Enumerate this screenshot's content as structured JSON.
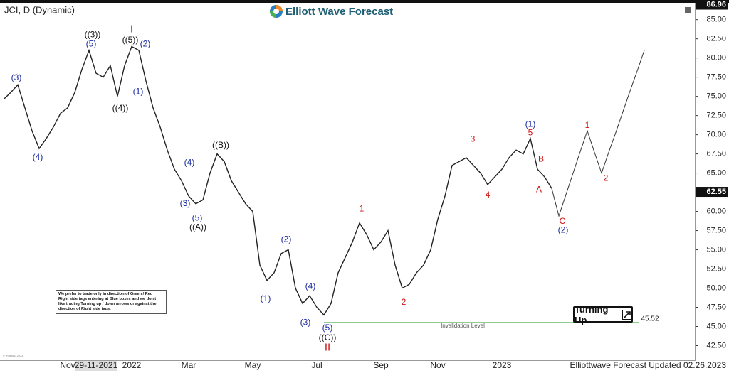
{
  "header": {
    "symbol": "JCI, D (Dynamic)",
    "logo": "Elliott Wave Forecast",
    "footer": "Elliottwave Forecast Updated 02.26.2023",
    "copyright": "© eSignal, 2023",
    "note": "We prefer to trade only in direction of Green / Red Right side tags entering at Blue boxes and we don't like trading Turning up / down arrows or against the direction of Right side tags.",
    "badge": "Turning Up"
  },
  "chart_data": {
    "type": "line",
    "categories": [
      null,
      null,
      null,
      null,
      null,
      null,
      null,
      null,
      null,
      "Nov",
      null,
      null,
      null,
      "29-11-2021",
      null,
      null,
      null,
      null,
      "2022",
      null,
      null,
      null,
      null,
      null,
      null,
      null,
      "Mar",
      null,
      null,
      null,
      null,
      null,
      null,
      null,
      null,
      "May",
      null,
      null,
      null,
      null,
      null,
      null,
      null,
      null,
      "Jul",
      null,
      null,
      null,
      null,
      null,
      null,
      null,
      null,
      "Sep",
      null,
      null,
      null,
      null,
      null,
      null,
      null,
      "Nov",
      null,
      null,
      null,
      null,
      null,
      null,
      null,
      null,
      "2023",
      null,
      null,
      null,
      null,
      null,
      null,
      null,
      null,
      null,
      null,
      null,
      null,
      null,
      null,
      null,
      null,
      null,
      null,
      null,
      null
    ],
    "series": [
      {
        "color": "#222222",
        "values": [
          74.6,
          75.5,
          76.5,
          73.5,
          70.5,
          68.2,
          69.5,
          71,
          72.8,
          73.5,
          75.5,
          78.5,
          81,
          78,
          77.5,
          79,
          75,
          79,
          81.5,
          81,
          77,
          73.5,
          71,
          68,
          65.5,
          64,
          62,
          61,
          61.5,
          65,
          67.5,
          66.5,
          64,
          62.5,
          61,
          60,
          53,
          51,
          52,
          54.5,
          55,
          50,
          48,
          49,
          47.5,
          46.5,
          48,
          52,
          54,
          56,
          58.5,
          57,
          55,
          56,
          57.5,
          53,
          50,
          50.5,
          52,
          53,
          55,
          59,
          62,
          66,
          66.5,
          67,
          66,
          65,
          63.5,
          64.5,
          65.5,
          67,
          68,
          67.5,
          69.5,
          65.5,
          64.5,
          63,
          null,
          null,
          null,
          null,
          null,
          null,
          null,
          null,
          null,
          null,
          null,
          null,
          null
        ]
      },
      {
        "color": "#333333",
        "values": [
          null,
          null,
          null,
          null,
          null,
          null,
          null,
          null,
          null,
          null,
          null,
          null,
          null,
          null,
          null,
          null,
          null,
          null,
          null,
          null,
          null,
          null,
          null,
          null,
          null,
          null,
          null,
          null,
          null,
          null,
          null,
          null,
          null,
          null,
          null,
          null,
          null,
          null,
          null,
          null,
          null,
          null,
          null,
          null,
          null,
          null,
          null,
          null,
          null,
          null,
          null,
          null,
          null,
          null,
          null,
          null,
          null,
          null,
          null,
          null,
          null,
          null,
          null,
          null,
          null,
          null,
          null,
          null,
          null,
          null,
          null,
          null,
          null,
          null,
          null,
          null,
          null,
          63,
          59.4,
          62.2,
          65,
          67.8,
          70.5,
          67.7,
          65,
          67.7,
          70.3,
          73,
          75.7,
          78.3,
          81
        ]
      }
    ],
    "ylim": [
      40.6,
      87.1
    ],
    "yticks": [
      {
        "value": 42.5,
        "label": "42.50"
      },
      {
        "value": 45,
        "label": "45.00"
      },
      {
        "value": 47.5,
        "label": "47.50"
      },
      {
        "value": 50,
        "label": "50.00"
      },
      {
        "value": 52.5,
        "label": "52.50"
      },
      {
        "value": 55,
        "label": "55.00"
      },
      {
        "value": 57.5,
        "label": "57.50"
      },
      {
        "value": 60,
        "label": "60.00"
      },
      {
        "value": 62.5,
        "label": "62.50"
      },
      {
        "value": 65,
        "label": "65.00"
      },
      {
        "value": 67.5,
        "label": "67.50"
      },
      {
        "value": 70,
        "label": "70.00"
      },
      {
        "value": 72.5,
        "label": "72.50"
      },
      {
        "value": 75,
        "label": "75.00"
      },
      {
        "value": 77.5,
        "label": "77.50"
      },
      {
        "value": 80,
        "label": "80.00"
      },
      {
        "value": 82.5,
        "label": "82.50"
      },
      {
        "value": 85,
        "label": "85.00"
      }
    ],
    "high_price": {
      "value": 86.96,
      "label": "86.96"
    },
    "last_price": {
      "value": 62.55,
      "label": "62.55"
    },
    "invalidation": {
      "value": 45.52,
      "label": "45.52",
      "text": "Invalidation Level",
      "color": "#4caf50"
    },
    "annotations": [
      {
        "text": "(3)",
        "x": 1.8,
        "y": 77.4,
        "color": "#1a2aa0"
      },
      {
        "text": "(4)",
        "x": 4.8,
        "y": 67,
        "color": "#1a2aa0"
      },
      {
        "text": "((3))",
        "x": 12.5,
        "y": 83,
        "color": "#111111"
      },
      {
        "text": "(5)",
        "x": 12.3,
        "y": 81.8,
        "color": "#1a2aa0"
      },
      {
        "text": "I",
        "x": 18,
        "y": 83.7,
        "color": "#cc1111"
      },
      {
        "text": "((5))",
        "x": 17.8,
        "y": 82.3,
        "color": "#111111"
      },
      {
        "text": "(2)",
        "x": 19.9,
        "y": 81.8,
        "color": "#1a2aa0"
      },
      {
        "text": "(1)",
        "x": 18.9,
        "y": 75.6,
        "color": "#1a2aa0"
      },
      {
        "text": "((4))",
        "x": 16.4,
        "y": 73.4,
        "color": "#111111"
      },
      {
        "text": "((B))",
        "x": 30.5,
        "y": 68.6,
        "color": "#111111"
      },
      {
        "text": "(4)",
        "x": 26.1,
        "y": 66.3,
        "color": "#1a2aa0"
      },
      {
        "text": "(3)",
        "x": 25.5,
        "y": 61,
        "color": "#1a2aa0"
      },
      {
        "text": "(5)",
        "x": 27.2,
        "y": 59.1,
        "color": "#1a2aa0"
      },
      {
        "text": "((A))",
        "x": 27.3,
        "y": 57.9,
        "color": "#111111"
      },
      {
        "text": "(2)",
        "x": 39.7,
        "y": 56.3,
        "color": "#1a2aa0"
      },
      {
        "text": "(1)",
        "x": 36.8,
        "y": 48.6,
        "color": "#1a2aa0"
      },
      {
        "text": "(4)",
        "x": 43.1,
        "y": 50.2,
        "color": "#1a2aa0"
      },
      {
        "text": "(3)",
        "x": 42.4,
        "y": 45.5,
        "color": "#1a2aa0"
      },
      {
        "text": "(5)",
        "x": 45.5,
        "y": 44.8,
        "color": "#1a2aa0"
      },
      {
        "text": "((C))",
        "x": 45.5,
        "y": 43.5,
        "color": "#111111"
      },
      {
        "text": "II",
        "x": 45.5,
        "y": 42.2,
        "color": "#cc1111"
      },
      {
        "text": "1",
        "x": 50.3,
        "y": 60.3,
        "color": "#cc1111"
      },
      {
        "text": "2",
        "x": 56.2,
        "y": 48.1,
        "color": "#cc1111"
      },
      {
        "text": "3",
        "x": 65.9,
        "y": 69.4,
        "color": "#cc1111"
      },
      {
        "text": "4",
        "x": 68,
        "y": 62.1,
        "color": "#cc1111"
      },
      {
        "text": "(1)",
        "x": 74,
        "y": 71.3,
        "color": "#1a2aa0"
      },
      {
        "text": "5",
        "x": 74,
        "y": 70.2,
        "color": "#cc1111"
      },
      {
        "text": "B",
        "x": 75.5,
        "y": 66.8,
        "color": "#cc1111"
      },
      {
        "text": "A",
        "x": 75.2,
        "y": 62.8,
        "color": "#cc1111"
      },
      {
        "text": "C",
        "x": 78.5,
        "y": 58.7,
        "color": "#cc1111"
      },
      {
        "text": "(2)",
        "x": 78.6,
        "y": 57.5,
        "color": "#1a2aa0"
      },
      {
        "text": "1",
        "x": 82,
        "y": 71.2,
        "color": "#cc1111"
      },
      {
        "text": "2",
        "x": 84.6,
        "y": 64.3,
        "color": "#cc1111"
      }
    ]
  }
}
